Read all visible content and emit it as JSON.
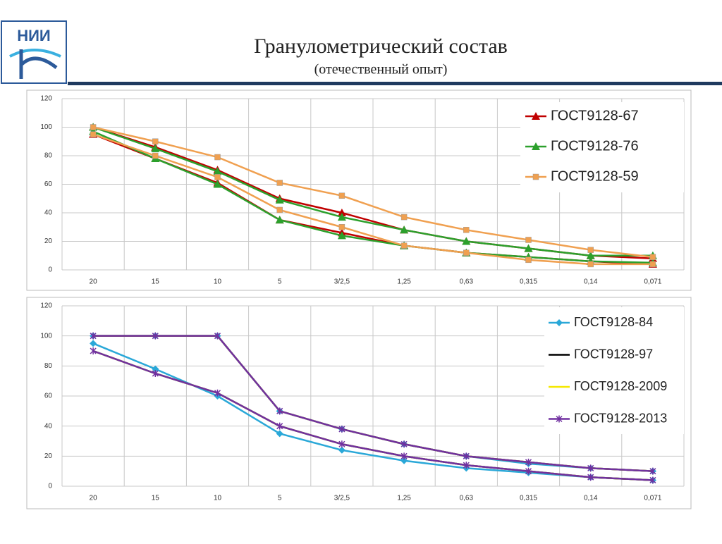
{
  "header": {
    "logo": "НИИ",
    "title": "Гранулометрический состав",
    "subtitle": "(отечественный опыт)"
  },
  "chart_data": [
    {
      "type": "line",
      "categories": [
        "20",
        "15",
        "10",
        "5",
        "3/2,5",
        "1,25",
        "0,63",
        "0,315",
        "0,14",
        "0,071"
      ],
      "ylim": [
        0,
        120
      ],
      "yticks": [
        0,
        20,
        40,
        60,
        80,
        100,
        120
      ],
      "grid": true,
      "legend": "upper right",
      "series": [
        {
          "name": "ГОСТ9128-67",
          "color": "#c00000",
          "marker": "triangle",
          "upper": [
            100,
            86,
            70,
            50,
            40,
            28,
            20,
            15,
            10,
            8
          ],
          "lower": [
            95,
            78,
            61,
            35,
            26,
            17,
            12,
            9,
            6,
            4
          ]
        },
        {
          "name": "ГОСТ9128-76",
          "color": "#2ca02c",
          "marker": "triangle",
          "upper": [
            100,
            85,
            69,
            49,
            37,
            28,
            20,
            15,
            10,
            10
          ],
          "lower": [
            97,
            78,
            60,
            35,
            24,
            17,
            12,
            9,
            6,
            5
          ]
        },
        {
          "name": "ГОСТ9128-59",
          "color": "#f0a050",
          "marker": "square",
          "upper": [
            100,
            90,
            79,
            61,
            52,
            37,
            28,
            21,
            14,
            9
          ],
          "lower": [
            95,
            80,
            65,
            42,
            30,
            17,
            12,
            7,
            4,
            4
          ]
        }
      ]
    },
    {
      "type": "line",
      "categories": [
        "20",
        "15",
        "10",
        "5",
        "3/2,5",
        "1,25",
        "0,63",
        "0,315",
        "0,14",
        "0,071"
      ],
      "ylim": [
        0,
        120
      ],
      "yticks": [
        0,
        20,
        40,
        60,
        80,
        100,
        120
      ],
      "grid": true,
      "legend": "upper right",
      "series": [
        {
          "name": "ГОСТ9128-84",
          "color": "#2aa8d8",
          "marker": "diamond",
          "upper": [
            100,
            100,
            100,
            50,
            38,
            28,
            20,
            15,
            12,
            10
          ],
          "lower": [
            95,
            78,
            60,
            35,
            24,
            17,
            12,
            9,
            6,
            4
          ]
        },
        {
          "name": "ГОСТ9128-97",
          "color": "#000000",
          "marker": "none",
          "upper": [
            100,
            100,
            100,
            50,
            38,
            28,
            20,
            16,
            12,
            10
          ],
          "lower": [
            90,
            75,
            62,
            40,
            28,
            20,
            14,
            10,
            6,
            4
          ]
        },
        {
          "name": "ГОСТ9128-2009",
          "color": "#f5e800",
          "marker": "none",
          "upper": [
            100,
            100,
            100,
            50,
            38,
            28,
            20,
            16,
            12,
            10
          ],
          "lower": [
            90,
            75,
            62,
            40,
            28,
            20,
            14,
            10,
            6,
            4
          ]
        },
        {
          "name": "ГОСТ9128-2013",
          "color": "#7030a0",
          "marker": "star",
          "upper": [
            100,
            100,
            100,
            50,
            38,
            28,
            20,
            16,
            12,
            10
          ],
          "lower": [
            90,
            75,
            62,
            40,
            28,
            20,
            14,
            10,
            6,
            4
          ]
        }
      ]
    }
  ]
}
